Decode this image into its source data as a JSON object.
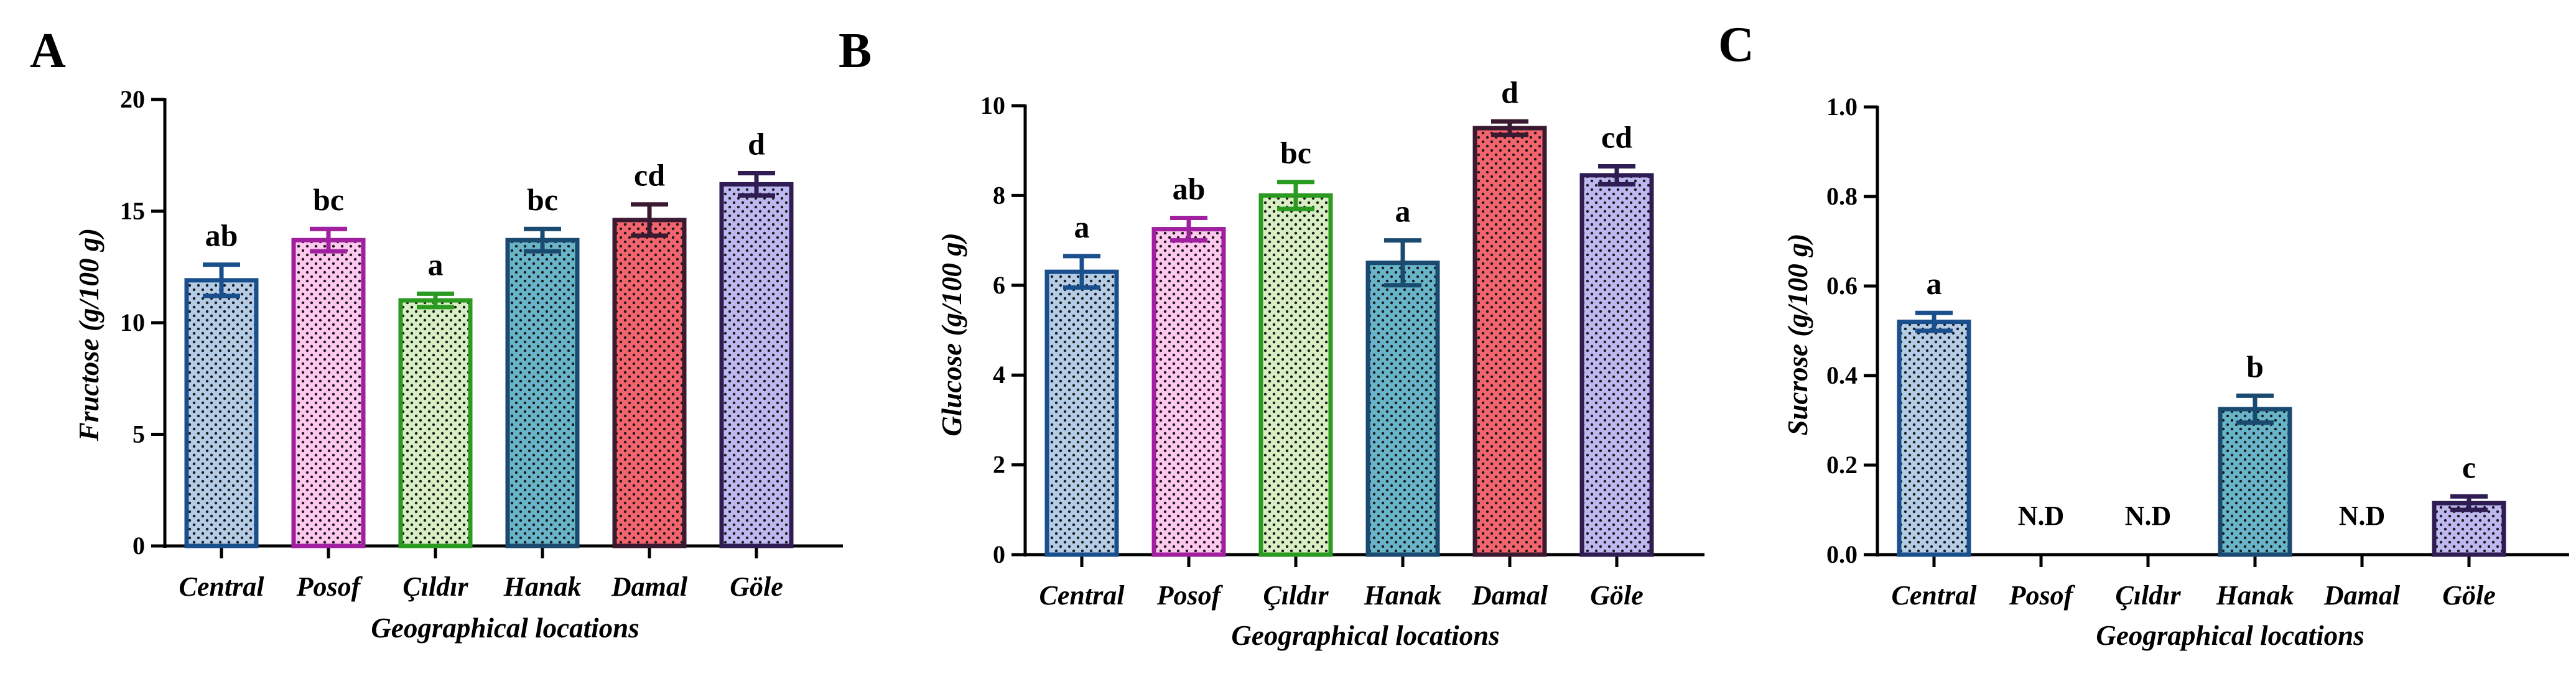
{
  "chart_data": [
    {
      "type": "bar",
      "panel": "A",
      "categories": [
        "Central",
        "Posof",
        "Çıldır",
        "Hanak",
        "Damal",
        "Göle"
      ],
      "values": [
        11.9,
        13.7,
        11.0,
        13.7,
        14.6,
        16.2
      ],
      "errors": [
        0.7,
        0.5,
        0.3,
        0.5,
        0.7,
        0.5
      ],
      "labels": [
        "ab",
        "bc",
        "a",
        "bc",
        "cd",
        "d"
      ],
      "xlabel": "Geographical locations",
      "ylabel": "Fructose (g/100 g)",
      "ylim": [
        0,
        20
      ],
      "yticks": [
        "0",
        "5",
        "10",
        "15",
        "20"
      ],
      "ytick_values": [
        0,
        5,
        10,
        15,
        20
      ]
    },
    {
      "type": "bar",
      "panel": "B",
      "categories": [
        "Central",
        "Posof",
        "Çıldır",
        "Hanak",
        "Damal",
        "Göle"
      ],
      "values": [
        6.3,
        7.25,
        8.0,
        6.5,
        9.5,
        8.45
      ],
      "errors": [
        0.35,
        0.25,
        0.3,
        0.5,
        0.15,
        0.2
      ],
      "labels": [
        "a",
        "ab",
        "bc",
        "a",
        "d",
        "cd"
      ],
      "xlabel": "Geographical locations",
      "ylabel": "Glucose (g/100 g)",
      "ylim": [
        0,
        10
      ],
      "yticks": [
        "0",
        "2",
        "4",
        "6",
        "8",
        "10"
      ],
      "ytick_values": [
        0,
        2,
        4,
        6,
        8,
        10
      ]
    },
    {
      "type": "bar",
      "panel": "C",
      "categories": [
        "Central",
        "Posof",
        "Çıldır",
        "Hanak",
        "Damal",
        "Göle"
      ],
      "values": [
        0.52,
        null,
        null,
        0.325,
        null,
        0.115
      ],
      "errors": [
        0.02,
        0,
        0,
        0.03,
        0,
        0.015
      ],
      "labels": [
        "a",
        "N.D",
        "N.D",
        "b",
        "N.D",
        "c"
      ],
      "xlabel": "Geographical locations",
      "ylabel": "Sucrose (g/100 g)",
      "ylim": [
        0,
        1.0
      ],
      "yticks": [
        "0.0",
        "0.2",
        "0.4",
        "0.6",
        "0.8",
        "1.0"
      ],
      "ytick_values": [
        0,
        0.2,
        0.4,
        0.6,
        0.8,
        1.0
      ]
    }
  ],
  "colors": {
    "fills": [
      "#b4cce6",
      "#ffc8ee",
      "#d8efc4",
      "#68b4c8",
      "#f4646e",
      "#beb8f0"
    ],
    "strokes": [
      "#1a4f8e",
      "#a020a0",
      "#2a9a20",
      "#1a4a70",
      "#3a1a30",
      "#2e1c52"
    ]
  }
}
